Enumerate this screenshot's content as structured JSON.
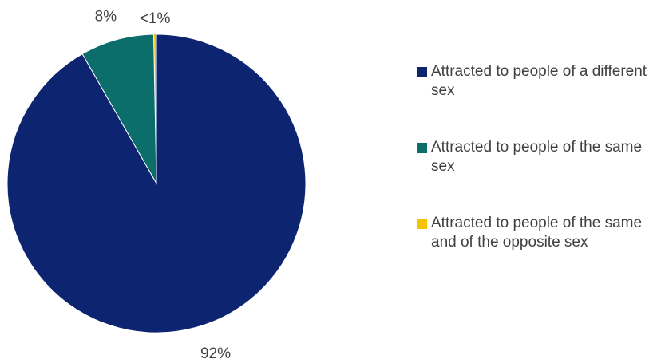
{
  "chart_data": {
    "type": "pie",
    "title": "",
    "categories": [
      "Attracted to people of a different sex",
      "Attracted to people of the same sex",
      "Attracted to people of the same and of the opposite sex"
    ],
    "values": [
      92,
      8,
      0.3
    ],
    "data_labels": [
      "92%",
      "8%",
      "<1%"
    ],
    "colors": [
      "#0d2471",
      "#0b6e6b",
      "#f5c400"
    ],
    "legend_position": "right",
    "start_angle": "top",
    "direction": "counterclockwise"
  }
}
